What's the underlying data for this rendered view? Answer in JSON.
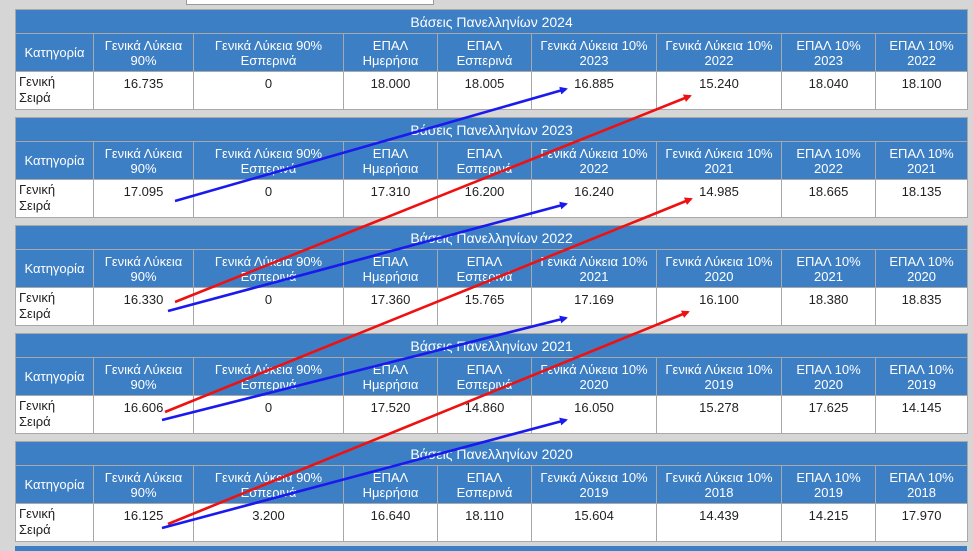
{
  "columns": [
    "Κατηγορία",
    "Γενικά Λύκεια 90%",
    "Γενικά Λύκεια 90% Εσπερινά",
    "ΕΠΑΛ Ημερήσια",
    "ΕΠΑΛ Εσπερινά",
    "Γενικά Λύκεια 10%",
    "Γενικά Λύκεια 10%",
    "ΕΠΑΛ 10%",
    "ΕΠΑΛ 10%"
  ],
  "blocks": [
    {
      "title": "Βάσεις Πανελληνίων 2024",
      "years": [
        "2023",
        "2022",
        "2023",
        "2022"
      ],
      "category": [
        "Γενική",
        "Σειρά"
      ],
      "values": [
        "16.735",
        "0",
        "18.000",
        "18.005",
        "16.885",
        "15.240",
        "18.040",
        "18.100"
      ]
    },
    {
      "title": "Βάσεις Πανελληνίων 2023",
      "years": [
        "2022",
        "2021",
        "2022",
        "2021"
      ],
      "category": [
        "Γενική",
        "Σειρά"
      ],
      "values": [
        "17.095",
        "0",
        "17.310",
        "16.200",
        "16.240",
        "14.985",
        "18.665",
        "18.135"
      ]
    },
    {
      "title": "Βάσεις Πανελληνίων 2022",
      "years": [
        "2021",
        "2020",
        "2021",
        "2020"
      ],
      "category": [
        "Γενική",
        "Σειρά"
      ],
      "values": [
        "16.330",
        "0",
        "17.360",
        "15.765",
        "17.169",
        "16.100",
        "18.380",
        "18.835"
      ]
    },
    {
      "title": "Βάσεις Πανελληνίων 2021",
      "years": [
        "2020",
        "2019",
        "2020",
        "2019"
      ],
      "category": [
        "Γενική",
        "Σειρά"
      ],
      "values": [
        "16.606",
        "0",
        "17.520",
        "14.860",
        "16.050",
        "15.278",
        "17.625",
        "14.145"
      ]
    },
    {
      "title": "Βάσεις Πανελληνίων 2020",
      "years": [
        "2019",
        "2018",
        "2019",
        "2018"
      ],
      "category": [
        "Γενική",
        "Σειρά"
      ],
      "values": [
        "16.125",
        "3.200",
        "16.640",
        "18.110",
        "15.604",
        "14.439",
        "14.215",
        "17.970"
      ]
    }
  ],
  "annotations": {
    "blue_arrow_color": "#1a1aee",
    "red_arrow_color": "#ee1111"
  }
}
